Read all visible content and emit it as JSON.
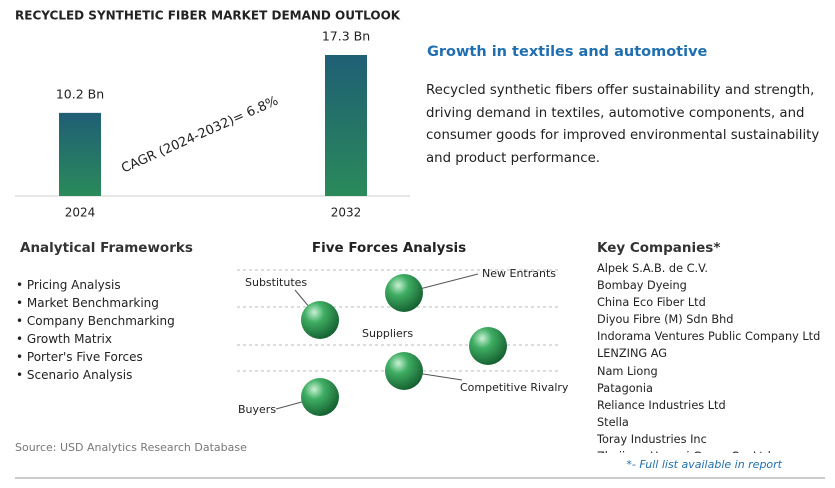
{
  "chart_data": {
    "type": "bar",
    "title": "RECYCLED SYNTHETIC FIBER MARKET DEMAND OUTLOOK",
    "categories": [
      "2024",
      "2032"
    ],
    "values": [
      10.2,
      17.3
    ],
    "value_labels": [
      "10.2 Bn",
      "17.3 Bn"
    ],
    "color": "#1f6e5e",
    "annotation": "CAGR (2024-2032)=   6.8%"
  },
  "summary": {
    "heading": "Growth in textiles and automotive",
    "text": "Recycled synthetic fibers offer sustainability and strength, driving demand in textiles, automotive components, and consumer goods for improved environmental sustainability and product performance."
  },
  "frameworks": {
    "heading": "Analytical Frameworks",
    "items": [
      "Pricing Analysis",
      "Market Benchmarking",
      "Company Benchmarking",
      "Growth Matrix",
      "Porter's Five Forces",
      "Scenario Analysis"
    ]
  },
  "five_forces": {
    "heading": "Five Forces Analysis",
    "forces": [
      "Substitutes",
      "New Entrants",
      "Suppliers",
      "Competitive Rivalry",
      "Buyers"
    ]
  },
  "companies": {
    "heading": "Key Companies*",
    "items": [
      "Alpek S.A.B. de C.V.",
      "Bombay Dyeing",
      "China Eco Fiber Ltd",
      "Diyou Fibre (M) Sdn Bhd",
      "Indorama Ventures Public Company Ltd",
      "LENZING AG",
      "Nam Liong",
      "Patagonia",
      "Reliance Industries Ltd",
      "Stella",
      "Toray Industries Inc",
      "Zhejiang Hengyi Group Co. Ltd"
    ],
    "note": "*- Full list available in report"
  },
  "source": "Source: USD Analytics Research Database"
}
